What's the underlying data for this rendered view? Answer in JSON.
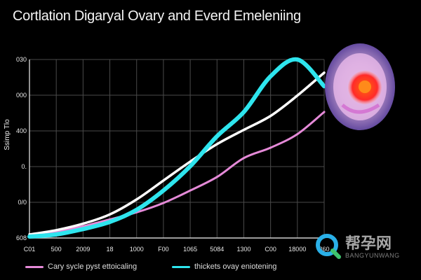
{
  "chart_data": {
    "type": "line",
    "title": "Cortlation Digaryal Ovary and Everd Emeleniing",
    "ylabel": "Ssimp Tlo",
    "y_tick_labels": [
      "608",
      "0/0",
      "0.",
      "400",
      "000",
      "030"
    ],
    "x_tick_labels": [
      "C01",
      "500",
      "2009",
      "18",
      "1000",
      "F00",
      "1065",
      "5084",
      "1300",
      "C00",
      "18000",
      "360"
    ],
    "x": [
      0,
      1,
      2,
      3,
      4,
      5,
      6,
      7,
      8,
      9,
      10,
      11
    ],
    "xlim": [
      0,
      11
    ],
    "ylim": [
      0,
      5
    ],
    "grid": true,
    "series": [
      {
        "name": "Cary sycle pyst ettoicaling",
        "color": "#e58ad8",
        "values": [
          0.08,
          0.18,
          0.33,
          0.52,
          0.72,
          0.98,
          1.33,
          1.71,
          2.24,
          2.53,
          2.91,
          3.53
        ]
      },
      {
        "color": "#ffffff",
        "values": [
          0.1,
          0.22,
          0.4,
          0.66,
          1.08,
          1.61,
          2.14,
          2.63,
          3.03,
          3.42,
          3.99,
          4.63
        ]
      },
      {
        "name": "thickets ovay eniotening",
        "color": "#2ee5ee",
        "values": [
          0.04,
          0.1,
          0.25,
          0.45,
          0.79,
          1.33,
          2.01,
          2.85,
          3.53,
          4.53,
          5.0,
          4.25
        ]
      }
    ]
  },
  "legend": {
    "item1": "Cary sycle pyst ettoicaling",
    "item2": "thickets ovay eniotening"
  },
  "watermark": {
    "cn": "帮孕网",
    "en": "BANGYUNWANG"
  }
}
